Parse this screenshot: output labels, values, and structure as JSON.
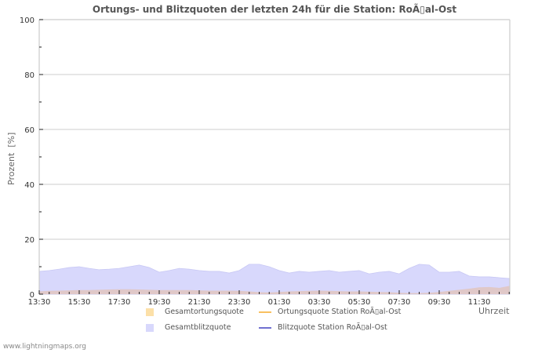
{
  "chart_data": {
    "type": "area",
    "title": "Ortungs- und Blitzquoten der letzten 24h für die Station: RoÃ\u0000tal-Ost",
    "xlabel": "Uhrzeit",
    "ylabel": "Prozent  [%]",
    "ylim": [
      0,
      100
    ],
    "yticks": [
      0,
      20,
      40,
      60,
      80,
      100
    ],
    "grid": true,
    "legend_position": "bottom",
    "categories": [
      "13:30",
      "14:00",
      "14:30",
      "15:00",
      "15:30",
      "16:00",
      "16:30",
      "17:00",
      "17:30",
      "18:00",
      "18:30",
      "19:00",
      "19:30",
      "20:00",
      "20:30",
      "21:00",
      "21:30",
      "22:00",
      "22:30",
      "23:00",
      "23:30",
      "00:00",
      "00:30",
      "01:00",
      "01:30",
      "02:00",
      "02:30",
      "03:00",
      "03:30",
      "04:00",
      "04:30",
      "05:00",
      "05:30",
      "06:00",
      "06:30",
      "07:00",
      "07:30",
      "08:00",
      "08:30",
      "09:00",
      "09:30",
      "10:00",
      "10:30",
      "11:00",
      "11:30",
      "12:00",
      "12:30",
      "13:00"
    ],
    "xtick_labels": [
      "13:30",
      "15:30",
      "17:30",
      "19:30",
      "21:30",
      "23:30",
      "01:30",
      "03:30",
      "05:30",
      "07:30",
      "09:30",
      "11:30"
    ],
    "series": [
      {
        "name": "Gesamtblitzquote",
        "type": "area",
        "color": "#d8d8fc",
        "values": [
          8.3,
          8.6,
          9.1,
          9.7,
          10.0,
          9.4,
          8.9,
          9.1,
          9.4,
          10.0,
          10.6,
          9.7,
          8.0,
          8.6,
          9.4,
          9.1,
          8.6,
          8.3,
          8.3,
          7.7,
          8.6,
          10.9,
          10.9,
          10.0,
          8.6,
          7.7,
          8.3,
          8.0,
          8.3,
          8.6,
          8.0,
          8.3,
          8.6,
          7.4,
          8.0,
          8.3,
          7.4,
          9.4,
          10.9,
          10.6,
          8.0,
          8.0,
          8.3,
          6.6,
          6.3,
          6.3,
          6.0,
          5.7
        ]
      },
      {
        "name": "Gesamtortungsquote",
        "type": "area",
        "color": "#fce0a8",
        "values": [
          1.0,
          1.2,
          1.3,
          1.4,
          1.5,
          1.5,
          1.6,
          1.7,
          1.8,
          1.8,
          1.7,
          1.6,
          1.5,
          1.5,
          1.5,
          1.5,
          1.4,
          1.3,
          1.3,
          1.3,
          1.2,
          1.0,
          0.7,
          0.6,
          0.8,
          1.0,
          1.1,
          1.2,
          1.3,
          1.2,
          1.1,
          1.0,
          1.0,
          0.9,
          0.8,
          0.7,
          0.5,
          0.4,
          0.4,
          0.5,
          0.8,
          1.2,
          1.6,
          2.0,
          2.5,
          2.6,
          2.3,
          3.0
        ]
      },
      {
        "name": "Ortungsquote Station RoÃ\u0000tal-Ost",
        "type": "line",
        "color": "#f8c060",
        "values": []
      },
      {
        "name": "Blitzquote Station RoÃ\u0000tal-Ost",
        "type": "line",
        "color": "#7070d0",
        "values": []
      }
    ]
  },
  "header": {
    "title": "Ortungs- und Blitzquoten der letzten 24h für die Station: RoÃ▯al-Ost"
  },
  "axes": {
    "y_label": "Prozent  [%]",
    "x_label": "Uhrzeit",
    "y_ticks": [
      "100",
      "80",
      "60",
      "40",
      "20",
      "0"
    ],
    "x_ticks": [
      "13:30",
      "15:30",
      "17:30",
      "19:30",
      "21:30",
      "23:30",
      "01:30",
      "03:30",
      "05:30",
      "07:30",
      "09:30",
      "11:30"
    ]
  },
  "legend": {
    "items": [
      {
        "label": "Gesamtortungsquote",
        "color": "#fce0a8",
        "kind": "area"
      },
      {
        "label": "Ortungsquote Station RoÃ▯al-Ost",
        "color": "#f8c060",
        "kind": "line"
      },
      {
        "label": "Gesamtblitzquote",
        "color": "#d8d8fc",
        "kind": "area"
      },
      {
        "label": "Blitzquote Station RoÃ▯al-Ost",
        "color": "#7070d0",
        "kind": "line"
      }
    ]
  },
  "footer": {
    "text": "www.lightningmaps.org"
  },
  "colors": {
    "grid": "#cccccc",
    "blitz_area": "#d8d8fc",
    "ortung_area": "#e0c8c8",
    "title": "#555555"
  }
}
